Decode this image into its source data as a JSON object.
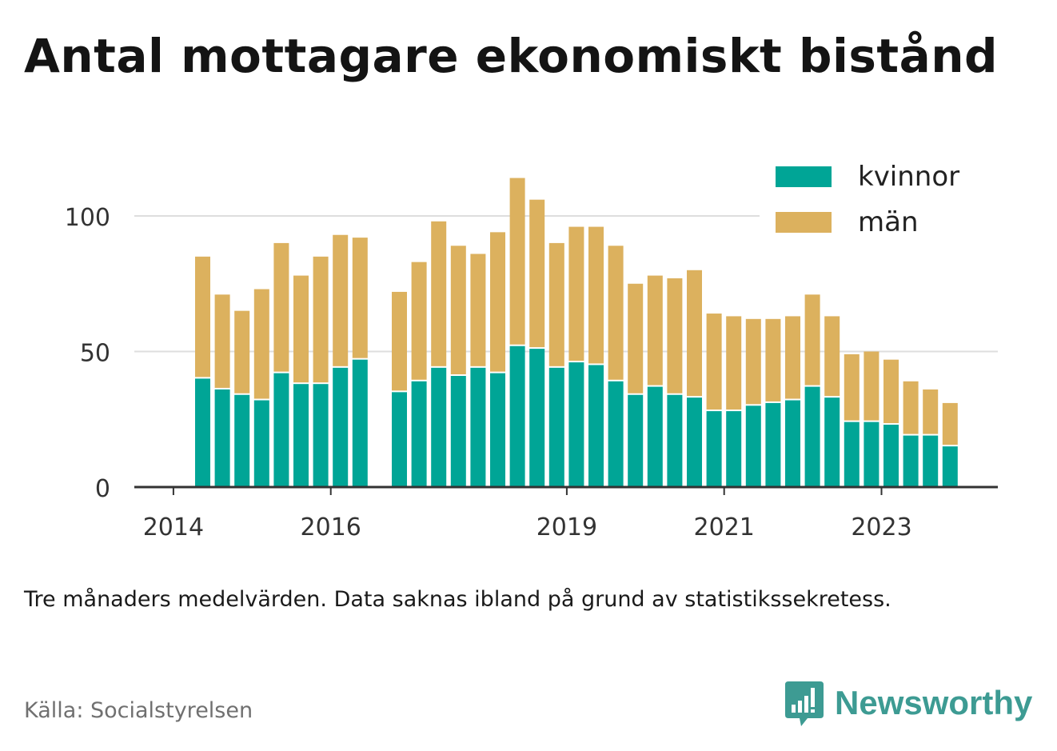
{
  "title": "Antal mottagare ekonomiskt bistånd",
  "note": "Tre månaders medelvärden. Data saknas ibland på grund av statistikssekretess.",
  "source": "Källa: Socialstyrelsen",
  "brand": {
    "name": "Newsworthy",
    "icon": "newsworthy-logo-icon"
  },
  "colors": {
    "kvinnor": "#00a596",
    "man": "#dcb15e",
    "grid": "#dedede",
    "axis": "#333333",
    "text": "#333333"
  },
  "chart_data": {
    "type": "bar",
    "stacked": true,
    "title": "Antal mottagare ekonomiskt bistånd",
    "xlabel": "",
    "ylabel": "",
    "ylim": [
      0,
      120
    ],
    "yticks": [
      0,
      50,
      100
    ],
    "xticks": [
      "2014",
      "2016",
      "2019",
      "2021",
      "2023"
    ],
    "grid": true,
    "legend_position": "top-right",
    "periods": [
      "2014 Q2",
      "2014 Q3",
      "2014 Q4",
      "2015 Q1",
      "2015 Q2",
      "2015 Q3",
      "2015 Q4",
      "2016 Q1",
      "2016 Q2",
      "2016 Q3",
      "2016 Q4",
      "2017 Q1",
      "2017 Q2",
      "2017 Q3",
      "2017 Q4",
      "2018 Q1",
      "2018 Q2",
      "2018 Q3",
      "2018 Q4",
      "2019 Q1",
      "2019 Q2",
      "2019 Q3",
      "2019 Q4",
      "2020 Q1",
      "2020 Q2",
      "2020 Q3",
      "2020 Q4",
      "2021 Q1",
      "2021 Q2",
      "2021 Q3",
      "2021 Q4",
      "2022 Q1",
      "2022 Q2",
      "2022 Q3",
      "2022 Q4",
      "2023 Q1",
      "2023 Q2",
      "2023 Q3",
      "2023 Q4"
    ],
    "series": [
      {
        "name": "kvinnor",
        "values": [
          40,
          36,
          34,
          32,
          42,
          38,
          38,
          44,
          47,
          null,
          35,
          39,
          44,
          41,
          44,
          42,
          52,
          51,
          44,
          46,
          45,
          39,
          34,
          37,
          34,
          33,
          28,
          28,
          30,
          31,
          32,
          37,
          33,
          24,
          24,
          23,
          19,
          19,
          15
        ]
      },
      {
        "name": "män",
        "values": [
          45,
          35,
          31,
          41,
          48,
          40,
          47,
          49,
          45,
          null,
          37,
          44,
          54,
          48,
          42,
          52,
          62,
          55,
          46,
          50,
          51,
          50,
          41,
          41,
          43,
          47,
          36,
          35,
          32,
          31,
          31,
          34,
          30,
          25,
          26,
          24,
          20,
          17,
          16
        ]
      }
    ]
  }
}
